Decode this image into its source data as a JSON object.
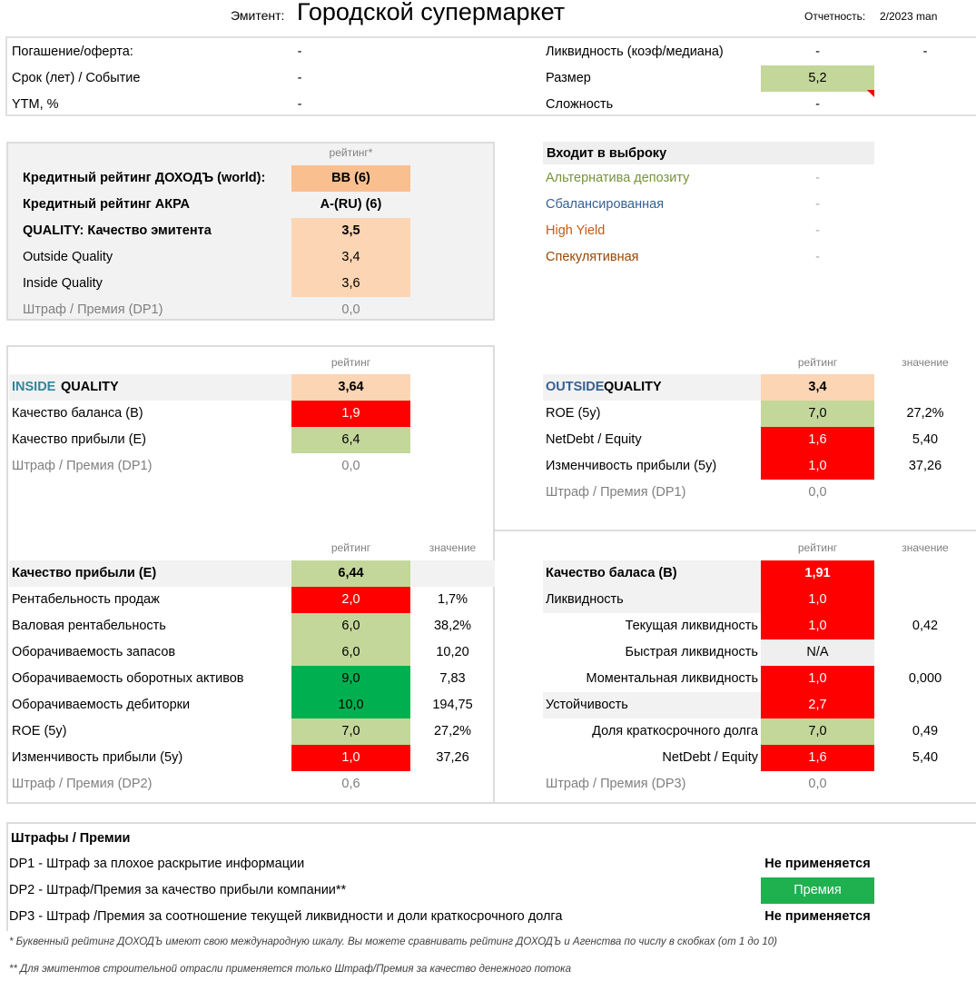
{
  "header": {
    "issuer_label": "Эмитент:",
    "issuer_name": "Городской супермаркет",
    "report_label": "Отчетность:",
    "report_value": "2/2023 man"
  },
  "top_info": {
    "left": [
      {
        "label": "Погашение/оферта:",
        "value": "-"
      },
      {
        "label": "Срок (лет) / Событие",
        "value": "-"
      },
      {
        "label": "YTM, %",
        "value": "-"
      }
    ],
    "right": [
      {
        "label": "Ликвидность (коэф/медиана)",
        "value": "-",
        "value2": "-"
      },
      {
        "label": "Размер",
        "value": "5,2",
        "fill": "#c4d79b"
      },
      {
        "label": "Сложность",
        "value": "-"
      }
    ]
  },
  "ratings_box": {
    "header": "рейтинг*",
    "rows": [
      {
        "label": "Кредитный рейтинг ДОХОДЪ (world):",
        "rating": "BB (6)",
        "fill": "#fabf8f",
        "bold": true
      },
      {
        "label": "Кредитный рейтинг АКРА",
        "rating": "A-(RU) (6)",
        "bold": true
      },
      {
        "label": "QUALITY: Качество эмитента",
        "rating": "3,5",
        "fill": "#fcd5b4",
        "bold": true
      },
      {
        "label": "Outside Quality",
        "rating": "3,4",
        "fill": "#fcd5b4"
      },
      {
        "label": "Inside Quality",
        "rating": "3,6",
        "fill": "#fcd5b4"
      },
      {
        "label": "Штраф / Премия (DP1)",
        "rating": "0,0",
        "gray": true
      }
    ]
  },
  "selection": {
    "header": "Входит в выброку",
    "items": [
      {
        "label": "Альтернатива депозиту",
        "value": "-",
        "color": "#76933c"
      },
      {
        "label": "Сбалансированная",
        "value": "-",
        "color": "#366092"
      },
      {
        "label": "High Yield",
        "value": "-",
        "color": "#c65911"
      },
      {
        "label": "Спекулятивная",
        "value": "-",
        "color": "#974706"
      }
    ]
  },
  "inside_quality": {
    "header_rating": "рейтинг",
    "title_a": "INSIDE",
    "title_b": "QUALITY",
    "title_a_color": "#31869b",
    "rating": "3,64",
    "fill": "#fcd5b4",
    "rows": [
      {
        "label": "Качество баланса (B)",
        "rating": "1,9",
        "fill": "#ff0000"
      },
      {
        "label": "Качество прибыли (E)",
        "rating": "6,4",
        "fill": "#c4d79b"
      },
      {
        "label": "Штраф / Премия (DP1)",
        "rating": "0,0",
        "gray": true
      }
    ]
  },
  "outside_quality": {
    "header_rating": "рейтинг",
    "header_value": "значение",
    "title_a": "OUTSIDE",
    "title_b": "QUALITY",
    "title_a_color": "#366092",
    "rating": "3,4",
    "fill": "#fcd5b4",
    "rows": [
      {
        "label": "ROE (5y)",
        "rating": "7,0",
        "value": "27,2%",
        "fill": "#c4d79b"
      },
      {
        "label": "NetDebt / Equity",
        "rating": "1,6",
        "value": "5,40",
        "fill": "#ff0000"
      },
      {
        "label": "Изменчивость прибыли (5y)",
        "rating": "1,0",
        "value": "37,26",
        "fill": "#ff0000"
      },
      {
        "label": "Штраф / Премия (DP1)",
        "rating": "0,0",
        "gray": true
      }
    ]
  },
  "earnings_quality": {
    "header_rating": "рейтинг",
    "header_value": "значение",
    "rows": [
      {
        "label": "Качество прибыли (E)",
        "rating": "6,44",
        "fill": "#c4d79b",
        "bold": true,
        "band": true
      },
      {
        "label": "Рентабельность продаж",
        "rating": "2,0",
        "value": "1,7%",
        "fill": "#ff0000"
      },
      {
        "label": "Валовая рентабельность",
        "rating": "6,0",
        "value": "38,2%",
        "fill": "#c4d79b"
      },
      {
        "label": "Оборачиваемость запасов",
        "rating": "6,0",
        "value": "10,20",
        "fill": "#c4d79b"
      },
      {
        "label": "Оборачиваемость оборотных активов",
        "rating": "9,0",
        "value": "7,83",
        "fill": "#00b050"
      },
      {
        "label": "Оборачиваемость дебиторки",
        "rating": "10,0",
        "value": "194,75",
        "fill": "#00b050"
      },
      {
        "label": "ROE (5y)",
        "rating": "7,0",
        "value": "27,2%",
        "fill": "#c4d79b"
      },
      {
        "label": "Изменчивость прибыли (5y)",
        "rating": "1,0",
        "value": "37,26",
        "fill": "#ff0000"
      },
      {
        "label": "Штраф / Премия (DP2)",
        "rating": "0,6",
        "gray": true
      }
    ]
  },
  "balance_quality": {
    "header_rating": "рейтинг",
    "header_value": "значение",
    "rows": [
      {
        "label": "Качество баласа (B)",
        "rating": "1,91",
        "fill": "#ff0000",
        "bold": true,
        "band": true
      },
      {
        "label": "Ликвидность",
        "rating": "1,0",
        "fill": "#ff0000",
        "band": true
      },
      {
        "label": "Текущая ликвидность",
        "rating": "1,0",
        "value": "0,42",
        "fill": "#ff0000",
        "indent": true
      },
      {
        "label": "Быстрая ликвидность",
        "rating": "N/A",
        "fill": "#efefef",
        "indent": true
      },
      {
        "label": "Моментальная ликвидность",
        "rating": "1,0",
        "value": "0,000",
        "fill": "#ff0000",
        "indent": true
      },
      {
        "label": "Устойчивость",
        "rating": "2,7",
        "fill": "#ff0000",
        "band": true
      },
      {
        "label": "Доля краткосрочного долга",
        "rating": "7,0",
        "value": "0,49",
        "fill": "#c4d79b",
        "indent": true
      },
      {
        "label": "NetDebt / Equity",
        "rating": "1,6",
        "value": "5,40",
        "fill": "#ff0000",
        "indent": true
      },
      {
        "label": "Штраф / Премия (DP3)",
        "rating": "0,0",
        "gray": true
      }
    ]
  },
  "penalties": {
    "title": "Штрафы / Премии",
    "rows": [
      {
        "label": "DP1 - Штраф за плохое раскрытие информации",
        "status": "Не применяется"
      },
      {
        "label": "DP2 - Штраф/Премия за качество прибыли компании**",
        "status": "Премия",
        "fill": "#1fb050"
      },
      {
        "label": "DP3 - Штраф /Премия за соотношение текущей ликвидности и доли краткосрочного долга",
        "status": "Не применяется"
      }
    ]
  },
  "footnotes": [
    "* Буквенный рейтинг ДОХОДЪ имеют свою международную шкалу. Вы можете сравнивать рейтинг ДОХОДЪ и Агенства по числу в скобках (от 1 до 10)",
    "** Для эмитентов строительной отрасли применяется только Штраф/Премия за качество денежного потока"
  ]
}
